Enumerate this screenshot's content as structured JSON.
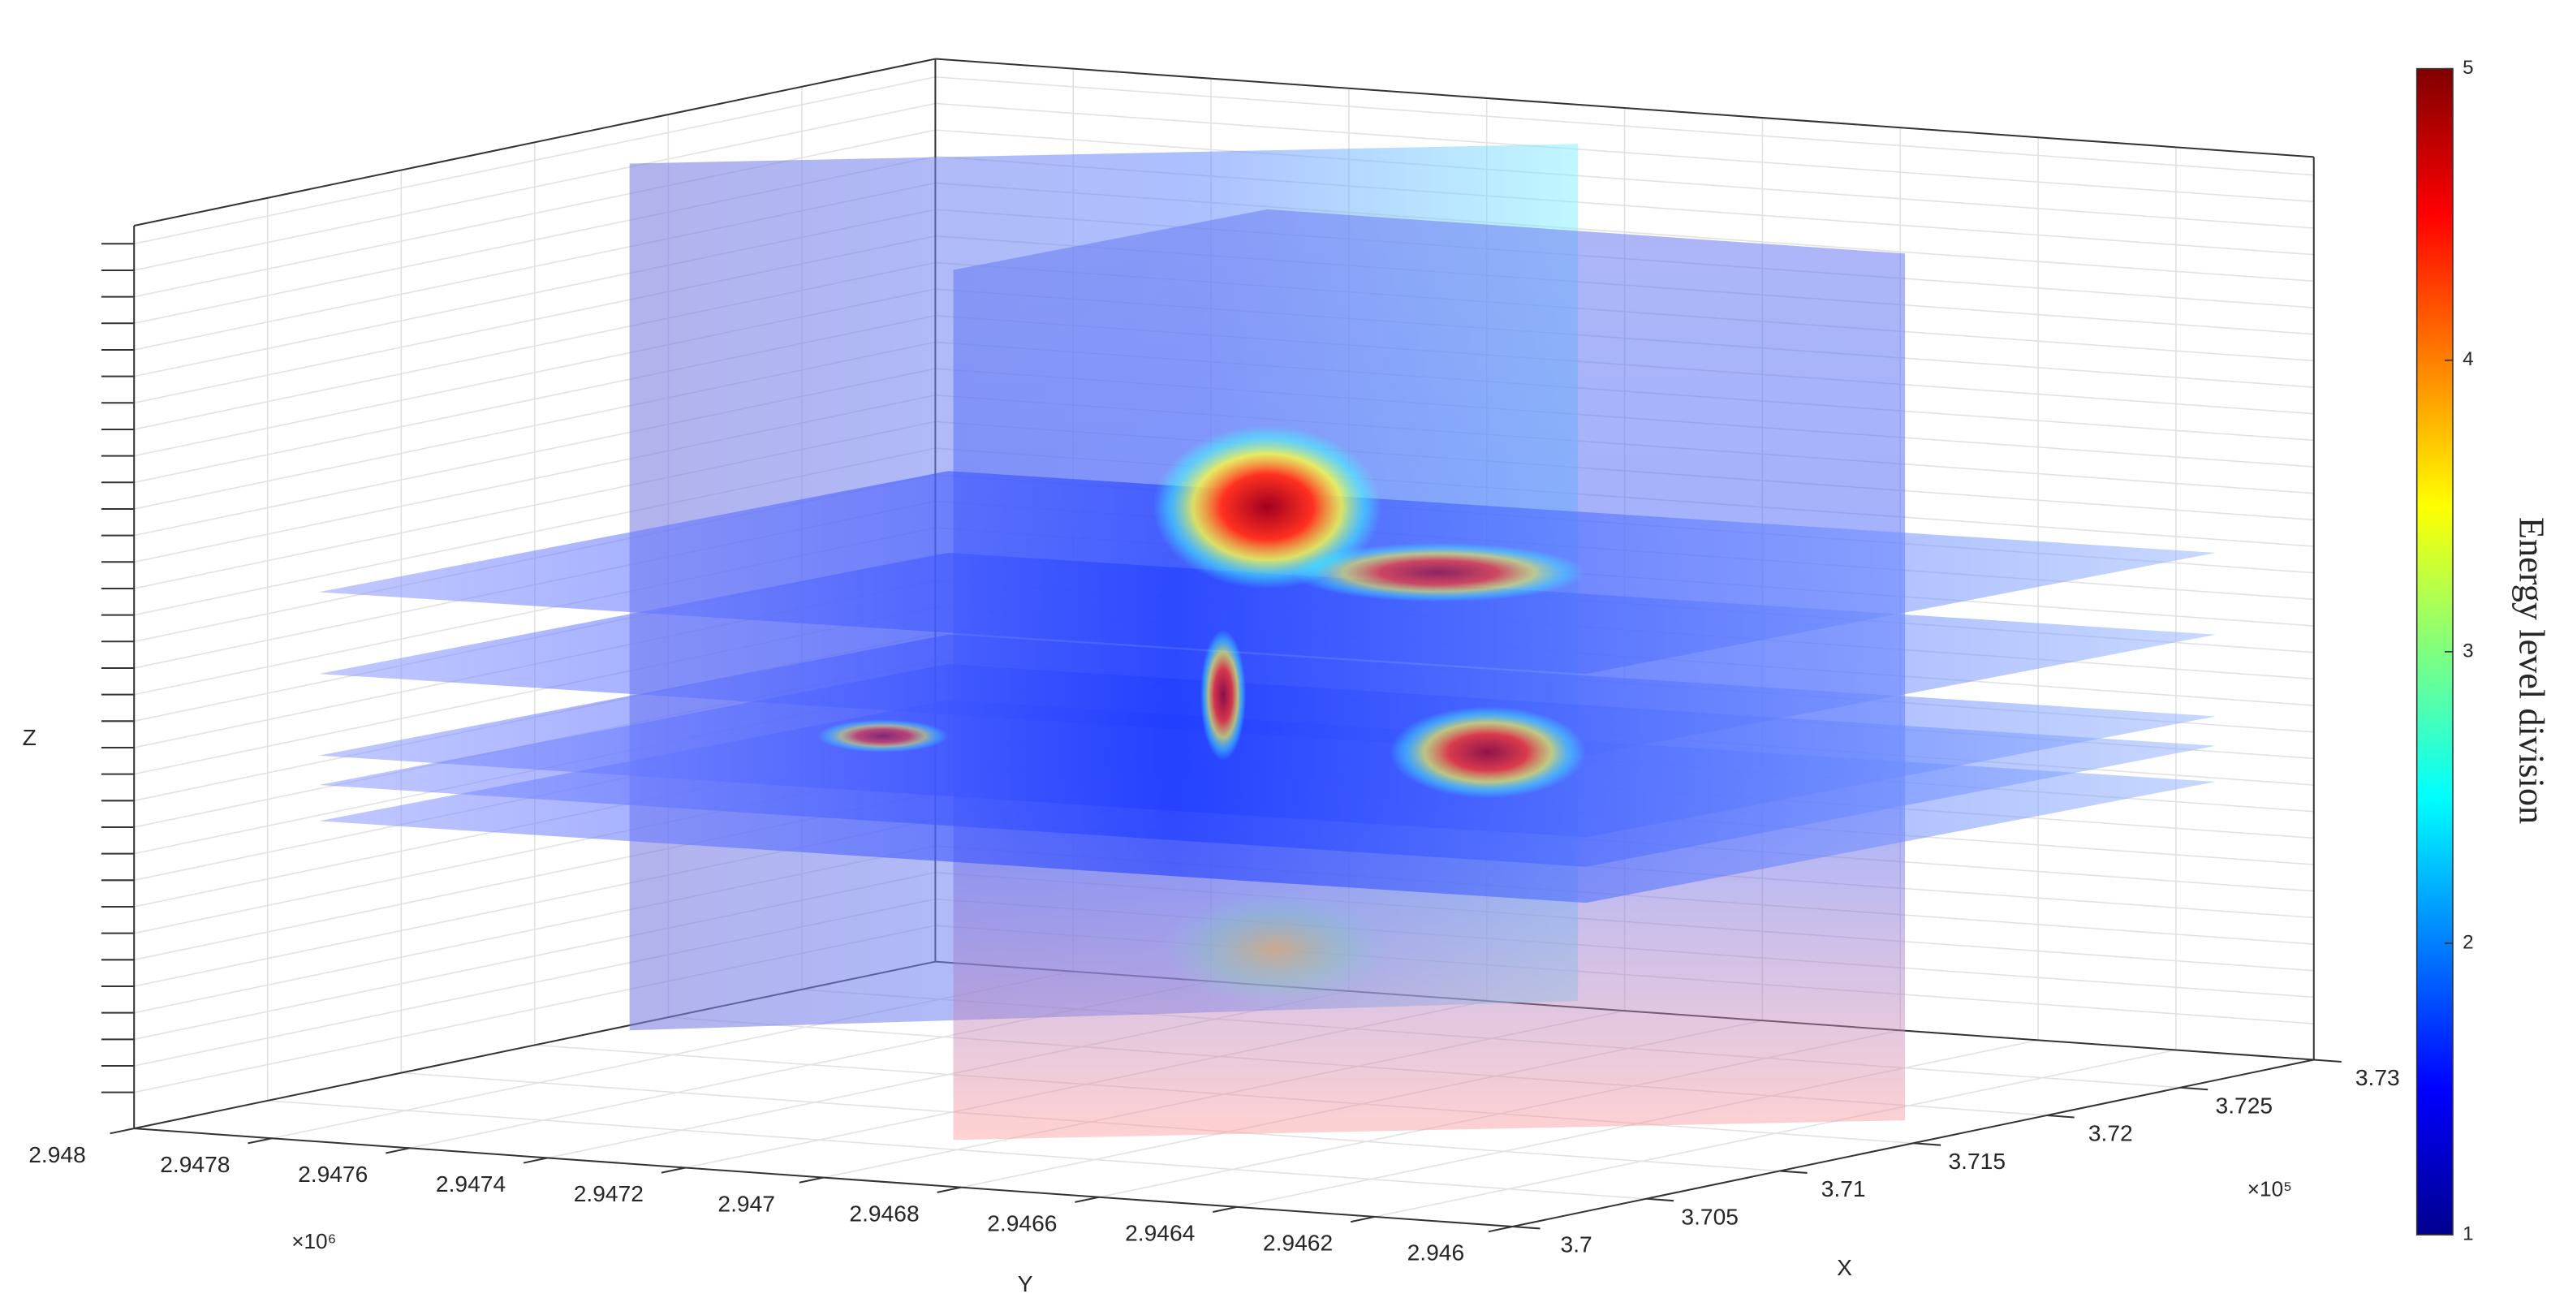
{
  "chart_data": {
    "type": "slice3d",
    "xlabel": "X",
    "ylabel": "Y",
    "zlabel": "Z",
    "xlim": [
      3.7,
      3.73
    ],
    "xticks": [
      3.7,
      3.705,
      3.71,
      3.715,
      3.72,
      3.725,
      3.73
    ],
    "x_multiplier": "×10⁵",
    "ylim": [
      2.948,
      2.946
    ],
    "yticks": [
      2.948,
      2.9478,
      2.9476,
      2.9474,
      2.9472,
      2.947,
      2.9468,
      2.9466,
      2.9464,
      2.9462,
      2.946
    ],
    "y_multiplier": "×10⁶",
    "grid": true,
    "colorbar": {
      "label": "Energy level division",
      "clim": [
        1,
        5
      ],
      "ticks": [
        1,
        2,
        3,
        4,
        5
      ],
      "colormap": "jet"
    }
  }
}
